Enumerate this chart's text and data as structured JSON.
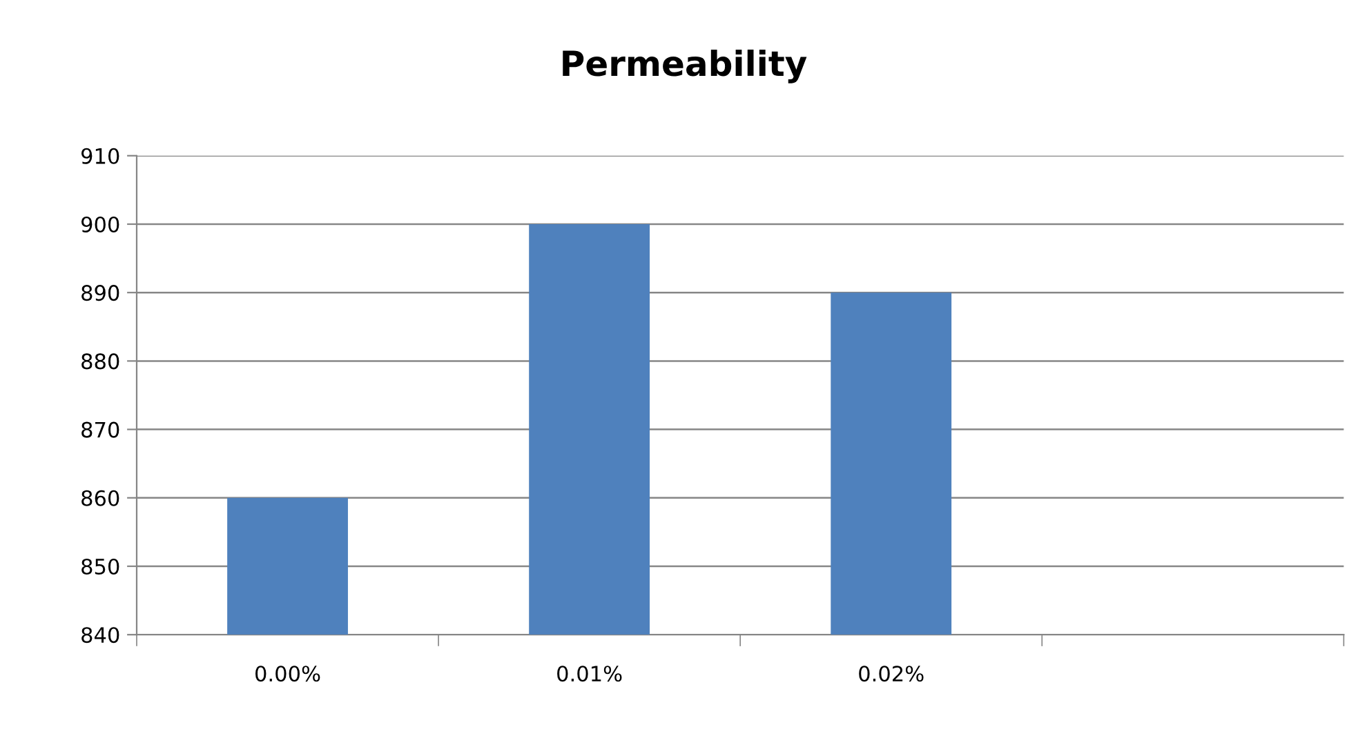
{
  "chart_data": {
    "type": "bar",
    "title": "Permeability",
    "categories": [
      "0.00%",
      "0.01%",
      "0.02%",
      null
    ],
    "values": [
      860,
      900,
      890,
      null
    ],
    "color": "#4f81bd",
    "ylim": [
      840,
      910
    ],
    "yticks": [
      840,
      850,
      860,
      870,
      880,
      890,
      900,
      910
    ],
    "grid": "y"
  }
}
